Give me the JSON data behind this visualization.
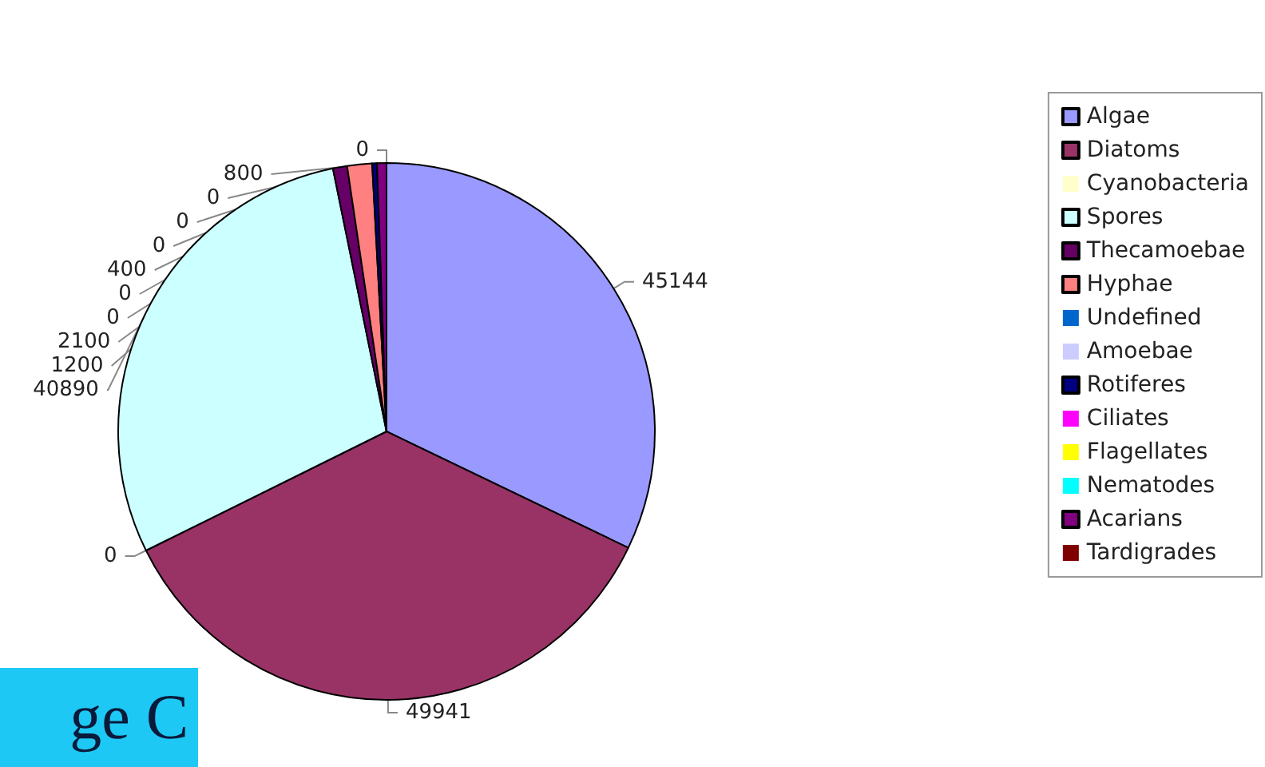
{
  "chart_data": {
    "type": "pie",
    "categories": [
      "Algae",
      "Diatoms",
      "Cyanobacteria",
      "Spores",
      "Thecamoebae",
      "Hyphae",
      "Undefined",
      "Amoebae",
      "Rotiferes",
      "Ciliates",
      "Flagellates",
      "Nematodes",
      "Acarians",
      "Tardigrades"
    ],
    "values": [
      45144,
      49941,
      0,
      40890,
      1200,
      2100,
      0,
      0,
      400,
      0,
      0,
      0,
      800,
      0
    ],
    "value_labels": [
      "45144",
      "49941",
      "0",
      "40890",
      "1200",
      "2100",
      "0",
      "0",
      "400",
      "0",
      "0",
      "0",
      "800",
      "0"
    ],
    "colors": [
      "#9999ff",
      "#993366",
      "#ffffcc",
      "#ccffff",
      "#660066",
      "#ff8080",
      "#0066cc",
      "#ccccff",
      "#000080",
      "#ff00ff",
      "#ffff00",
      "#00ffff",
      "#800080",
      "#800000"
    ],
    "legend": "right",
    "annotations": [
      "ge C"
    ]
  }
}
